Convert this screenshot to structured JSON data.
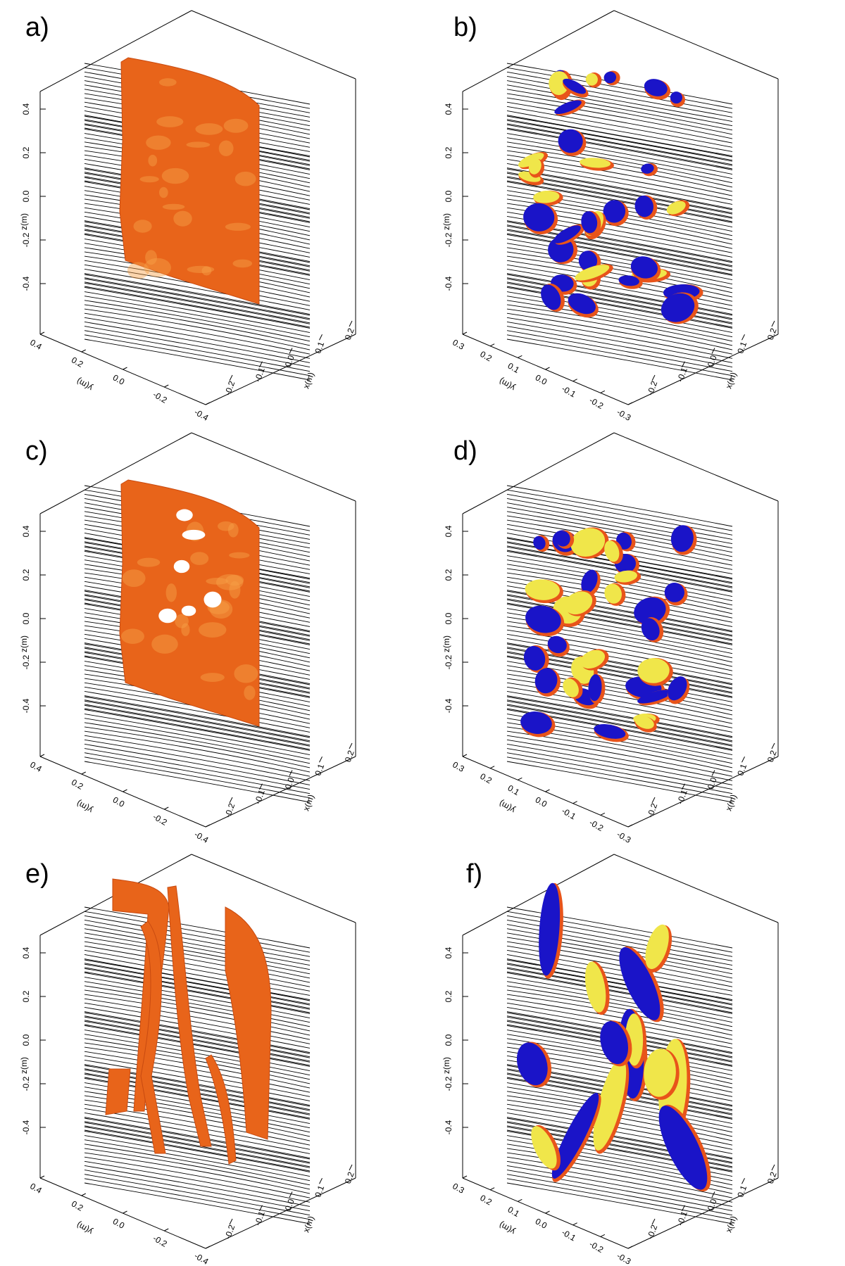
{
  "figure": {
    "panels": [
      {
        "label": "a)",
        "kind": "sheet",
        "y_ticks": [
          "0.4",
          "0.2",
          "0.0",
          "-0.2",
          "-0.4"
        ],
        "x_ticks": [
          "-0.2",
          "-0.1",
          "0.0",
          "0.1",
          "0.2"
        ]
      },
      {
        "label": "b)",
        "kind": "blobs",
        "y_ticks": [
          "0.3",
          "0.2",
          "0.1",
          "0.0",
          "-0.1",
          "-0.2",
          "-0.3"
        ],
        "x_ticks": [
          "-0.2",
          "-0.1",
          "0.0",
          "0.1",
          "0.2"
        ]
      },
      {
        "label": "c)",
        "kind": "holes",
        "y_ticks": [
          "0.4",
          "0.2",
          "0.0",
          "-0.2",
          "-0.4"
        ],
        "x_ticks": [
          "-0.2",
          "-0.1",
          "0.0",
          "0.1",
          "0.2"
        ]
      },
      {
        "label": "d)",
        "kind": "blobs",
        "y_ticks": [
          "0.3",
          "0.2",
          "0.1",
          "0.0",
          "-0.1",
          "-0.2",
          "-0.3"
        ],
        "x_ticks": [
          "-0.2",
          "-0.1",
          "0.0",
          "0.1",
          "0.2"
        ]
      },
      {
        "label": "e)",
        "kind": "strands",
        "y_ticks": [
          "0.4",
          "0.2",
          "0.0",
          "-0.2",
          "-0.4"
        ],
        "x_ticks": [
          "-0.2",
          "-0.1",
          "0.0",
          "0.1",
          "0.2"
        ]
      },
      {
        "label": "f)",
        "kind": "tubes",
        "y_ticks": [
          "0.3",
          "0.2",
          "0.1",
          "0.0",
          "-0.1",
          "-0.2",
          "-0.3"
        ],
        "x_ticks": [
          "-0.2",
          "-0.1",
          "0.0",
          "0.1",
          "0.2"
        ]
      }
    ],
    "z_ticks": [
      "0.4",
      "0.2",
      "0.0",
      "-0.2",
      "-0.4"
    ],
    "z_label": "z(m)",
    "y_label": "y(m)",
    "x_label": "x(m)",
    "colors": {
      "surface": "#e8641a",
      "surface_light": "#f7a24a",
      "negative_blob": "#1a14c8",
      "positive_blob": "#f0e64a",
      "blob_edge": "#e8541a",
      "contour": "#000000"
    }
  }
}
